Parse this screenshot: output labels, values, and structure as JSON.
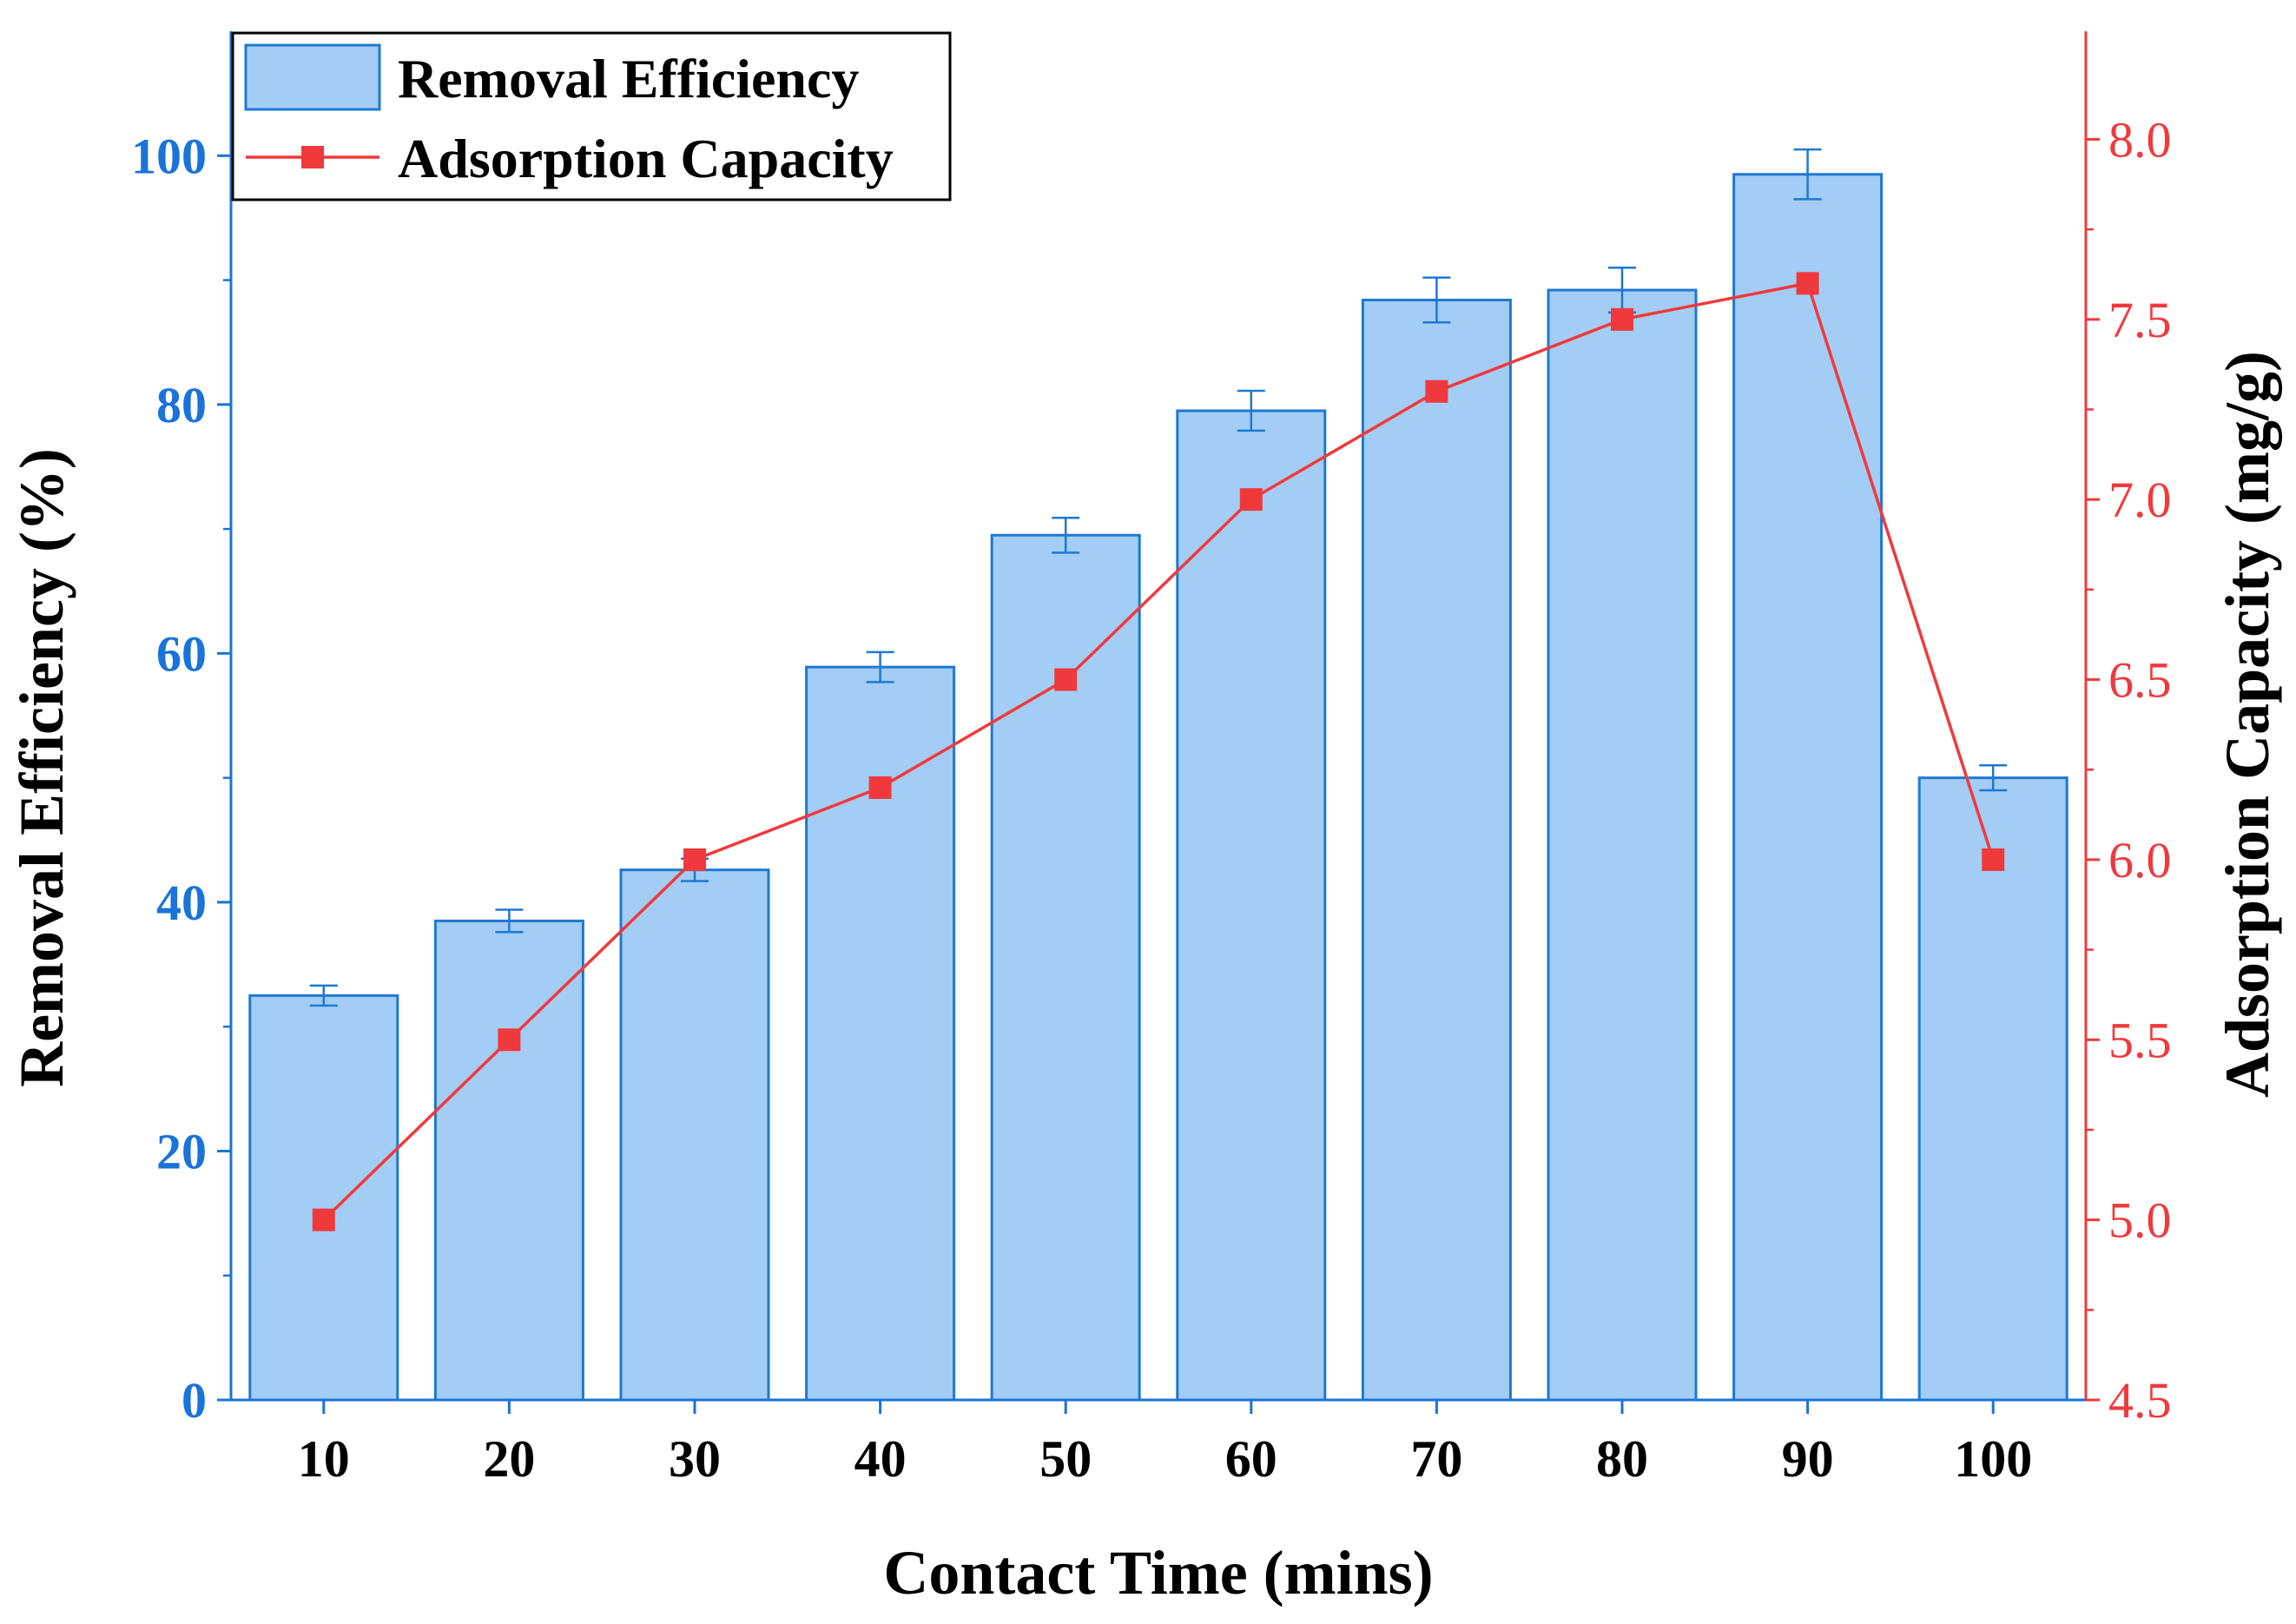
{
  "chart_data": {
    "type": "bar",
    "xlabel": "Contact Time (mins)",
    "ylabel": "Removal Efficiency (%)",
    "y2label": "Adsorption Capacity (mg/g)",
    "categories": [
      "10",
      "20",
      "30",
      "40",
      "50",
      "60",
      "70",
      "80",
      "90",
      "100"
    ],
    "ylim": [
      0,
      110
    ],
    "y2lim": [
      4.5,
      8.3
    ],
    "yticks": [
      0,
      20,
      40,
      60,
      80,
      100
    ],
    "y2ticks": [
      "4.5",
      "5.0",
      "5.5",
      "6.0",
      "6.5",
      "7.0",
      "7.5",
      "8.0"
    ],
    "legend_position": "top-left",
    "series": [
      {
        "name": "Removal Efficiency",
        "type": "bar",
        "axis": "left",
        "values": [
          32.5,
          38.5,
          42.6,
          58.9,
          69.5,
          79.5,
          88.4,
          89.2,
          98.5,
          50.0
        ],
        "errors": [
          0.8,
          0.9,
          0.9,
          1.2,
          1.4,
          1.6,
          1.8,
          1.8,
          2.0,
          1.0
        ]
      },
      {
        "name": "Adsorption Capacity",
        "type": "line",
        "axis": "right",
        "values": [
          5.0,
          5.5,
          6.0,
          6.2,
          6.5,
          7.0,
          7.3,
          7.5,
          7.6,
          6.0
        ]
      }
    ],
    "colors": {
      "bar_fill": "#a3cdf4",
      "bar_edge": "#1f78d2",
      "left_axis": "#1a73d9",
      "line": "#f0393c",
      "marker": "#f0393c",
      "right_axis": "#f0393c",
      "text": "#000000"
    }
  }
}
